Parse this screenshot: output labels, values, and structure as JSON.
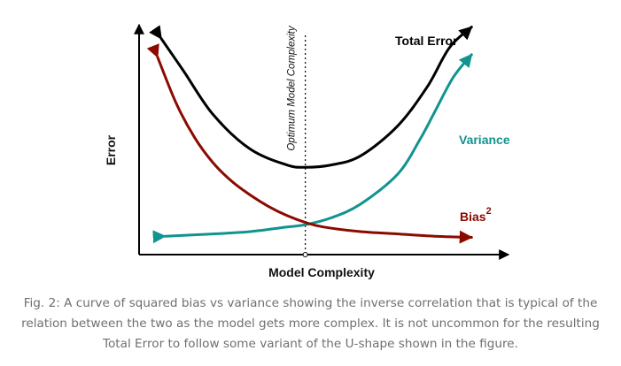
{
  "chart_data": {
    "type": "line",
    "title": "",
    "xlabel": "Model Complexity",
    "ylabel": "Error",
    "xlim": [
      0,
      10
    ],
    "ylim": [
      0,
      10
    ],
    "optimum": {
      "x": 4.5,
      "label": "Optimum Model Complexity"
    },
    "series": [
      {
        "name": "Total Error",
        "color": "#000000",
        "label_text": "Total Error",
        "x": [
          0.6,
          1.2,
          2.0,
          3.0,
          4.0,
          4.5,
          5.2,
          6.0,
          7.0,
          7.8,
          8.4,
          9.0
        ],
        "y": [
          9.4,
          8.0,
          6.1,
          4.6,
          3.9,
          3.8,
          3.9,
          4.3,
          5.6,
          7.3,
          9.0,
          9.9
        ]
      },
      {
        "name": "Variance",
        "color": "#11938f",
        "label_text": "Variance",
        "x": [
          0.7,
          2.0,
          3.0,
          4.0,
          4.5,
          5.2,
          6.0,
          7.0,
          7.6,
          8.0,
          8.5,
          9.0
        ],
        "y": [
          0.8,
          0.9,
          1.0,
          1.2,
          1.3,
          1.6,
          2.2,
          3.5,
          5.0,
          6.2,
          7.7,
          8.7
        ]
      },
      {
        "name": "Bias",
        "color": "#8b0a00",
        "label_text": "Bias",
        "label_sup": "2",
        "x": [
          0.5,
          1.0,
          1.5,
          2.0,
          2.5,
          3.0,
          3.5,
          4.0,
          4.5,
          5.0,
          6.0,
          7.0,
          8.0,
          9.0
        ],
        "y": [
          8.6,
          6.6,
          5.1,
          4.0,
          3.2,
          2.6,
          2.1,
          1.7,
          1.4,
          1.2,
          1.0,
          0.9,
          0.8,
          0.75
        ]
      }
    ]
  },
  "caption": "Fig. 2: A curve of squared bias vs variance showing the inverse correlation that is typical of the relation between the two as the model gets more complex. It is not uncommon for the resulting Total Error to follow some variant of the U-shape shown in the figure."
}
